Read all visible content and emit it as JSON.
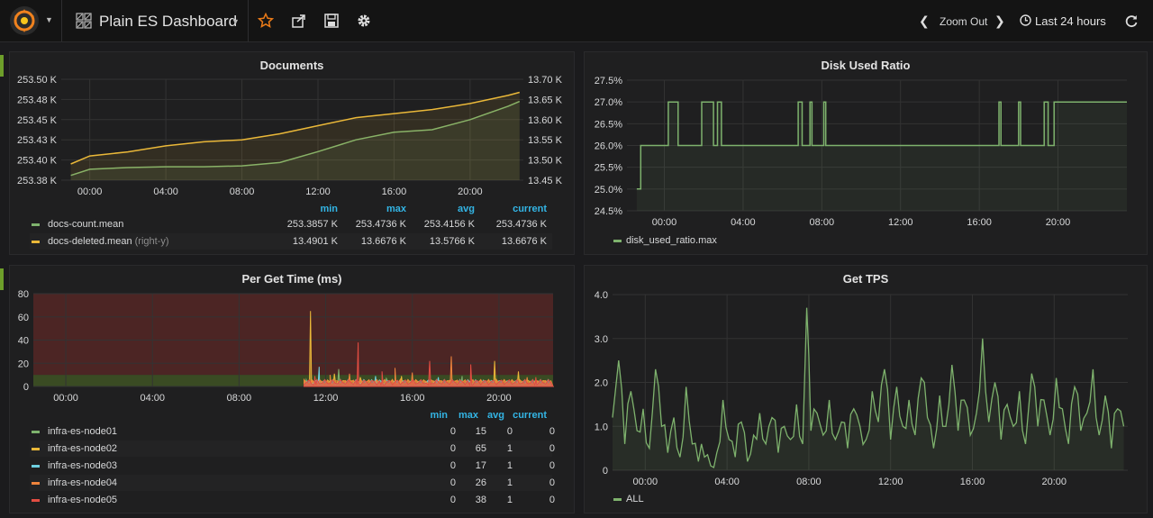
{
  "topbar": {
    "dashboard_title": "Plain ES Dashboard",
    "zoom_out_label": "Zoom Out",
    "time_range_label": "Last 24 hours"
  },
  "colors": {
    "green": "#7eb26d",
    "yellow": "#eab839",
    "blue": "#6ed0e0",
    "orange": "#ef843c",
    "red": "#e24d42",
    "legend_header": "#33b5e5",
    "row_marker": "#6d9e2a"
  },
  "panels": {
    "documents": {
      "title": "Documents",
      "legend_headers": [
        "min",
        "max",
        "avg",
        "current"
      ],
      "legend": [
        {
          "name": "docs-count.mean",
          "note": "",
          "min": "253.3857 K",
          "max": "253.4736 K",
          "avg": "253.4156 K",
          "current": "253.4736 K"
        },
        {
          "name": "docs-deleted.mean",
          "note": "(right-y)",
          "min": "13.4901 K",
          "max": "13.6676 K",
          "avg": "13.5766 K",
          "current": "13.6676 K"
        }
      ]
    },
    "disk_used_ratio": {
      "title": "Disk Used Ratio",
      "legend": [
        {
          "name": "disk_used_ratio.max"
        }
      ]
    },
    "per_get_time": {
      "title": "Per Get Time (ms)",
      "legend_headers": [
        "min",
        "max",
        "avg",
        "current"
      ],
      "legend": [
        {
          "name": "infra-es-node01",
          "min": "0",
          "max": "15",
          "avg": "0",
          "current": "0"
        },
        {
          "name": "infra-es-node02",
          "min": "0",
          "max": "65",
          "avg": "1",
          "current": "0"
        },
        {
          "name": "infra-es-node03",
          "min": "0",
          "max": "17",
          "avg": "1",
          "current": "0"
        },
        {
          "name": "infra-es-node04",
          "min": "0",
          "max": "26",
          "avg": "1",
          "current": "0"
        },
        {
          "name": "infra-es-node05",
          "min": "0",
          "max": "38",
          "avg": "1",
          "current": "0"
        }
      ]
    },
    "get_tps": {
      "title": "Get TPS",
      "legend": [
        {
          "name": "ALL"
        }
      ]
    }
  },
  "chart_data": [
    {
      "panel": "Documents",
      "type": "line",
      "x_ticks": [
        "00:00",
        "04:00",
        "08:00",
        "12:00",
        "16:00",
        "20:00"
      ],
      "ylim": [
        253.38,
        253.5
      ],
      "y_ticks": [
        "253.38 K",
        "253.40 K",
        "253.43 K",
        "253.45 K",
        "253.48 K",
        "253.50 K"
      ],
      "y2lim": [
        13.45,
        13.7
      ],
      "y2_ticks": [
        "13.45 K",
        "13.50 K",
        "13.55 K",
        "13.60 K",
        "13.65 K",
        "13.70 K"
      ],
      "x_hours": [
        -1,
        0,
        2,
        4,
        6,
        8,
        10,
        12,
        14,
        16,
        18,
        20,
        22,
        22.6
      ],
      "series": [
        {
          "name": "docs-count.mean",
          "axis": "left",
          "color": "#7eb26d",
          "values": [
            253.3857,
            253.393,
            253.395,
            253.396,
            253.396,
            253.397,
            253.401,
            253.414,
            253.428,
            253.437,
            253.44,
            253.452,
            253.468,
            253.4736
          ]
        },
        {
          "name": "docs-deleted.mean",
          "axis": "right",
          "color": "#eab839",
          "values": [
            13.4901,
            13.51,
            13.52,
            13.535,
            13.545,
            13.55,
            13.565,
            13.585,
            13.605,
            13.615,
            13.625,
            13.64,
            13.66,
            13.6676
          ]
        }
      ]
    },
    {
      "panel": "Disk Used Ratio",
      "type": "line",
      "x_ticks": [
        "00:00",
        "04:00",
        "08:00",
        "12:00",
        "16:00",
        "20:00"
      ],
      "ylim": [
        24.5,
        27.5
      ],
      "y_ticks": [
        "24.5%",
        "25.0%",
        "25.5%",
        "26.0%",
        "26.5%",
        "27.0%",
        "27.5%"
      ],
      "series": [
        {
          "name": "disk_used_ratio.max",
          "color": "#7eb26d",
          "step": true,
          "points": [
            [
              -1.4,
              25.0
            ],
            [
              -1.2,
              25.0
            ],
            [
              -1.2,
              26.0
            ],
            [
              0.2,
              26.0
            ],
            [
              0.2,
              27.0
            ],
            [
              0.7,
              27.0
            ],
            [
              0.7,
              26.0
            ],
            [
              1.9,
              26.0
            ],
            [
              1.9,
              27.0
            ],
            [
              2.5,
              27.0
            ],
            [
              2.5,
              26.0
            ],
            [
              2.7,
              26.0
            ],
            [
              2.7,
              27.0
            ],
            [
              2.9,
              27.0
            ],
            [
              2.9,
              26.0
            ],
            [
              6.8,
              26.0
            ],
            [
              6.8,
              27.0
            ],
            [
              7.0,
              27.0
            ],
            [
              7.0,
              26.0
            ],
            [
              7.4,
              26.0
            ],
            [
              7.4,
              27.0
            ],
            [
              7.5,
              27.0
            ],
            [
              7.5,
              26.0
            ],
            [
              8.1,
              26.0
            ],
            [
              8.1,
              27.0
            ],
            [
              8.2,
              27.0
            ],
            [
              8.2,
              26.0
            ],
            [
              17.0,
              26.0
            ],
            [
              17.0,
              27.0
            ],
            [
              17.1,
              27.0
            ],
            [
              17.1,
              26.0
            ],
            [
              18.0,
              26.0
            ],
            [
              18.0,
              27.0
            ],
            [
              18.1,
              27.0
            ],
            [
              18.1,
              26.0
            ],
            [
              19.3,
              26.0
            ],
            [
              19.3,
              27.0
            ],
            [
              19.5,
              27.0
            ],
            [
              19.5,
              26.0
            ],
            [
              19.8,
              26.0
            ],
            [
              19.8,
              27.0
            ],
            [
              23.5,
              27.0
            ]
          ]
        }
      ]
    },
    {
      "panel": "Per Get Time (ms)",
      "type": "area",
      "x_ticks": [
        "00:00",
        "04:00",
        "08:00",
        "12:00",
        "16:00",
        "20:00"
      ],
      "ylim": [
        0,
        80
      ],
      "y_ticks": [
        "0",
        "20",
        "40",
        "60",
        "80"
      ],
      "thresholds": [
        {
          "from": 0,
          "to": 10,
          "color": "#6d9e2a"
        },
        {
          "from": 10,
          "to": 80,
          "color": "#a0312f"
        }
      ],
      "series": [
        {
          "name": "infra-es-node01",
          "color": "#7eb26d",
          "spikes": [
            [
              11.1,
              6
            ],
            [
              12.6,
              15
            ],
            [
              14.8,
              7
            ],
            [
              18.3,
              9
            ]
          ]
        },
        {
          "name": "infra-es-node02",
          "color": "#eab839",
          "spikes": [
            [
              11.3,
              65
            ],
            [
              12.4,
              11
            ],
            [
              13.6,
              8
            ],
            [
              15.5,
              9
            ],
            [
              19.8,
              22
            ],
            [
              20.9,
              13
            ]
          ]
        },
        {
          "name": "infra-es-node03",
          "color": "#6ed0e0",
          "spikes": [
            [
              11.7,
              17
            ],
            [
              14.3,
              9
            ],
            [
              17.2,
              8
            ]
          ]
        },
        {
          "name": "infra-es-node04",
          "color": "#ef843c",
          "spikes": [
            [
              12.2,
              10
            ],
            [
              13.1,
              11
            ],
            [
              15.2,
              16
            ],
            [
              16.0,
              12
            ],
            [
              17.8,
              26
            ],
            [
              21.3,
              8
            ]
          ]
        },
        {
          "name": "infra-es-node05",
          "color": "#e24d42",
          "spikes": [
            [
              11.5,
              9
            ],
            [
              13.5,
              38
            ],
            [
              14.6,
              13
            ],
            [
              16.8,
              22
            ],
            [
              18.7,
              19
            ],
            [
              21.7,
              8
            ]
          ]
        }
      ]
    },
    {
      "panel": "Get TPS",
      "type": "line",
      "x_ticks": [
        "00:00",
        "04:00",
        "08:00",
        "12:00",
        "16:00",
        "20:00"
      ],
      "ylim": [
        0,
        4.0
      ],
      "y_ticks": [
        "0",
        "1.0",
        "2.0",
        "3.0",
        "4.0"
      ],
      "series": [
        {
          "name": "ALL",
          "color": "#7eb26d",
          "x_hours": [
            -1.6,
            -1.3,
            -1.0,
            -0.7,
            -0.4,
            -0.1,
            0.2,
            0.5,
            0.8,
            1.1,
            1.4,
            1.7,
            2.0,
            2.3,
            2.6,
            2.9,
            3.2,
            3.5,
            3.8,
            4.1,
            4.4,
            4.7,
            5.0,
            5.3,
            5.6,
            5.9,
            6.2,
            6.5,
            6.8,
            7.1,
            7.4,
            7.7,
            7.9,
            8.1,
            8.4,
            8.7,
            9.0,
            9.3,
            9.6,
            9.9,
            10.2,
            10.5,
            10.8,
            11.1,
            11.4,
            11.7,
            12.0,
            12.3,
            12.6,
            12.9,
            13.2,
            13.5,
            13.8,
            14.1,
            14.4,
            14.7,
            15.0,
            15.3,
            15.6,
            15.9,
            16.2,
            16.5,
            16.8,
            17.1,
            17.4,
            17.7,
            18.0,
            18.3,
            18.6,
            18.9,
            19.2,
            19.5,
            19.8,
            20.1,
            20.4,
            20.7,
            21.0,
            21.3,
            21.6,
            21.9,
            22.2,
            22.5,
            22.8,
            23.1,
            23.4
          ],
          "values": [
            1.2,
            2.5,
            0.6,
            1.8,
            0.9,
            1.4,
            0.5,
            2.3,
            1.0,
            0.4,
            1.2,
            0.3,
            1.9,
            0.6,
            0.2,
            0.3,
            0.1,
            0.4,
            1.6,
            0.7,
            0.3,
            1.1,
            0.2,
            0.8,
            1.3,
            0.6,
            1.2,
            0.4,
            1.0,
            0.7,
            1.5,
            0.6,
            3.7,
            0.9,
            1.3,
            0.8,
            1.6,
            0.7,
            1.1,
            0.5,
            1.4,
            1.0,
            0.7,
            1.8,
            1.1,
            2.3,
            0.7,
            1.9,
            1.0,
            1.6,
            0.8,
            2.1,
            1.2,
            0.5,
            1.7,
            1.0,
            2.4,
            0.9,
            1.6,
            0.8,
            1.3,
            3.0,
            1.1,
            2.0,
            0.7,
            1.5,
            1.0,
            1.8,
            0.6,
            2.2,
            1.0,
            1.6,
            0.8,
            2.1,
            1.4,
            0.6,
            1.9,
            0.9,
            1.3,
            2.3,
            0.8,
            1.7,
            0.5,
            1.4,
            1.0
          ]
        }
      ]
    }
  ]
}
